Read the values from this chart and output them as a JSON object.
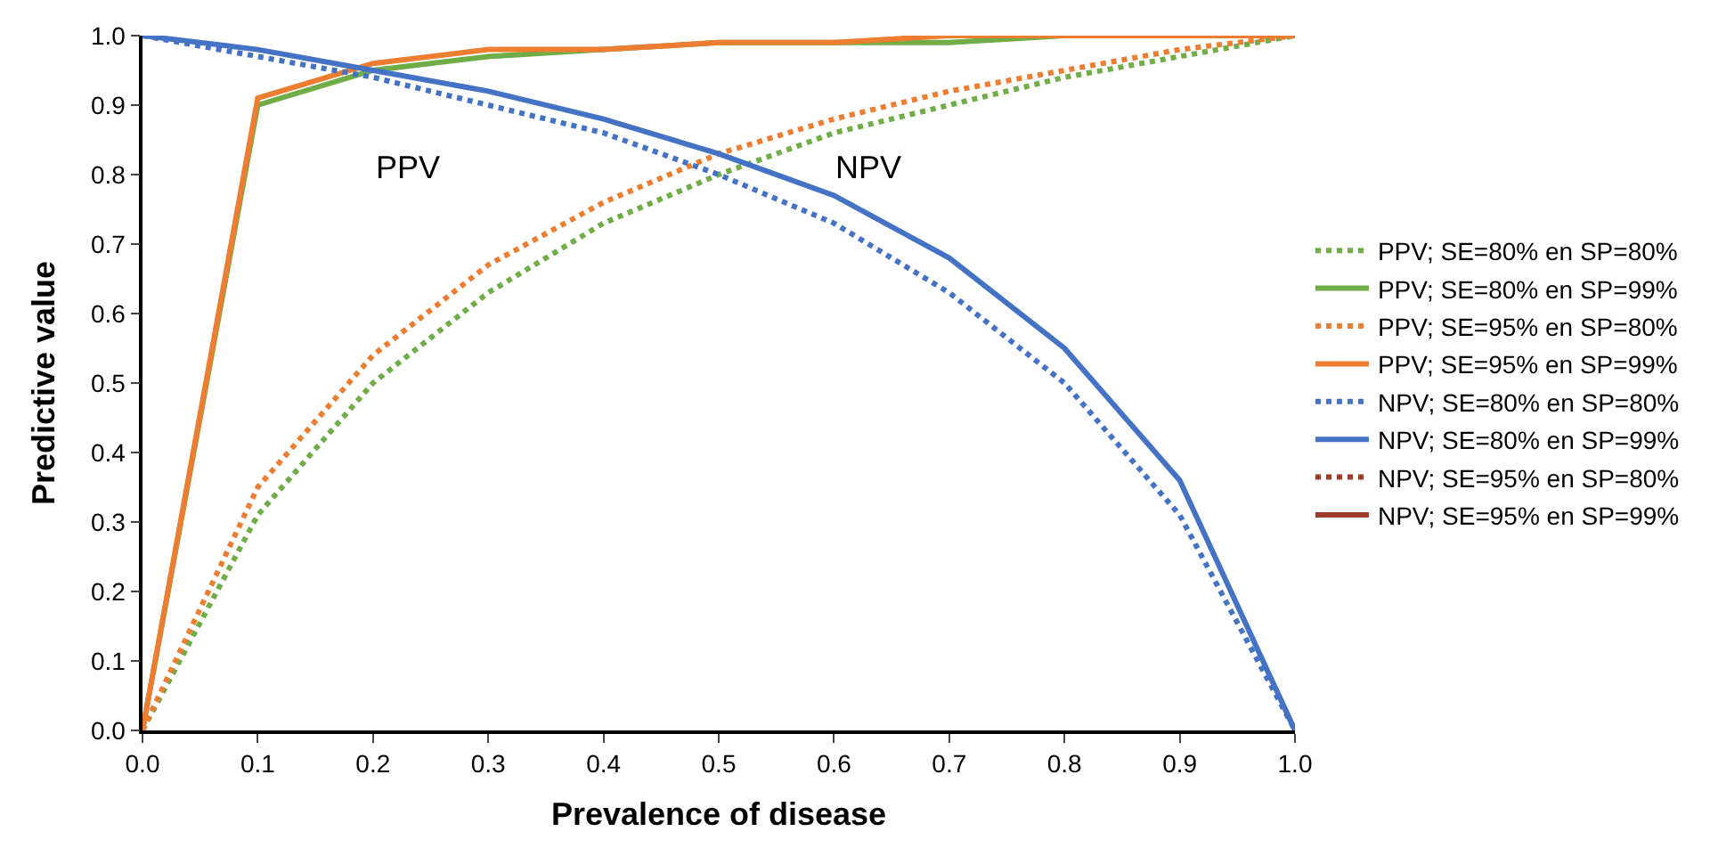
{
  "chart_data": {
    "type": "line",
    "xlabel": "Prevalence of disease",
    "ylabel": "Predictive value",
    "x": [
      0,
      0.1,
      0.2,
      0.3,
      0.4,
      0.5,
      0.6,
      0.7,
      0.8,
      0.9,
      1
    ],
    "xlim": [
      0,
      1
    ],
    "xticks": [
      {
        "value": 0,
        "label": "0.0"
      },
      {
        "value": 0.1,
        "label": "0.1"
      },
      {
        "value": 0.2,
        "label": "0.2"
      },
      {
        "value": 0.3,
        "label": "0.3"
      },
      {
        "value": 0.4,
        "label": "0.4"
      },
      {
        "value": 0.5,
        "label": "0.5"
      },
      {
        "value": 0.6,
        "label": "0.6"
      },
      {
        "value": 0.7,
        "label": "0.7"
      },
      {
        "value": 0.8,
        "label": "0.8"
      },
      {
        "value": 0.9,
        "label": "0.9"
      },
      {
        "value": 1,
        "label": "1.0"
      }
    ],
    "ylim": [
      0,
      1
    ],
    "yticks": [
      {
        "value": 0,
        "label": "0.0"
      },
      {
        "value": 0.1,
        "label": "0.1"
      },
      {
        "value": 0.2,
        "label": "0.2"
      },
      {
        "value": 0.3,
        "label": "0.3"
      },
      {
        "value": 0.4,
        "label": "0.4"
      },
      {
        "value": 0.5,
        "label": "0.5"
      },
      {
        "value": 0.6,
        "label": "0.6"
      },
      {
        "value": 0.7,
        "label": "0.7"
      },
      {
        "value": 0.8,
        "label": "0.8"
      },
      {
        "value": 0.9,
        "label": "0.9"
      },
      {
        "value": 1,
        "label": "1.0"
      }
    ],
    "legend": "right",
    "marker": "none",
    "annotations": [
      "PPV",
      "NPV"
    ],
    "series": [
      {
        "name": "PPV; SE=80% en SP=80%",
        "color": "#70ad47",
        "line_style": "dotted",
        "values": [
          0,
          0.31,
          0.5,
          0.63,
          0.73,
          0.8,
          0.86,
          0.9,
          0.94,
          0.97,
          1
        ]
      },
      {
        "name": "PPV; SE=80% en SP=99%",
        "color": "#70ad47",
        "line_style": "solid",
        "values": [
          0,
          0.9,
          0.95,
          0.97,
          0.98,
          0.99,
          0.99,
          0.99,
          1,
          1,
          1
        ]
      },
      {
        "name": "PPV; SE=95% en SP=80%",
        "color": "#ed7d31",
        "line_style": "dotted",
        "values": [
          0,
          0.35,
          0.54,
          0.67,
          0.76,
          0.83,
          0.88,
          0.92,
          0.95,
          0.98,
          1
        ]
      },
      {
        "name": "PPV; SE=95% en SP=99%",
        "color": "#ed7d31",
        "line_style": "solid",
        "values": [
          0,
          0.91,
          0.96,
          0.98,
          0.98,
          0.99,
          0.99,
          1,
          1,
          1,
          1
        ]
      },
      {
        "name": "NPV; SE=80% en SP=80%",
        "color": "#4472c4",
        "line_style": "dotted",
        "values": [
          1,
          0.97,
          0.94,
          0.9,
          0.86,
          0.8,
          0.73,
          0.63,
          0.5,
          0.31,
          0
        ]
      },
      {
        "name": "NPV; SE=80% en SP=99%",
        "color": "#4472c4",
        "line_style": "solid",
        "values": [
          1,
          0.98,
          0.95,
          0.92,
          0.88,
          0.83,
          0.77,
          0.68,
          0.55,
          0.36,
          0
        ]
      },
      {
        "name": "NPV; SE=95% en SP=80%",
        "color": "#9e3a26",
        "line_style": "dotted",
        "values": [
          null,
          null,
          null,
          null,
          null,
          null,
          null,
          null,
          null,
          null,
          null
        ]
      },
      {
        "name": "NPV; SE=95% en SP=99%",
        "color": "#9e3a26",
        "line_style": "solid",
        "values": [
          null,
          null,
          null,
          null,
          null,
          null,
          null,
          null,
          null,
          null,
          null
        ]
      }
    ]
  }
}
